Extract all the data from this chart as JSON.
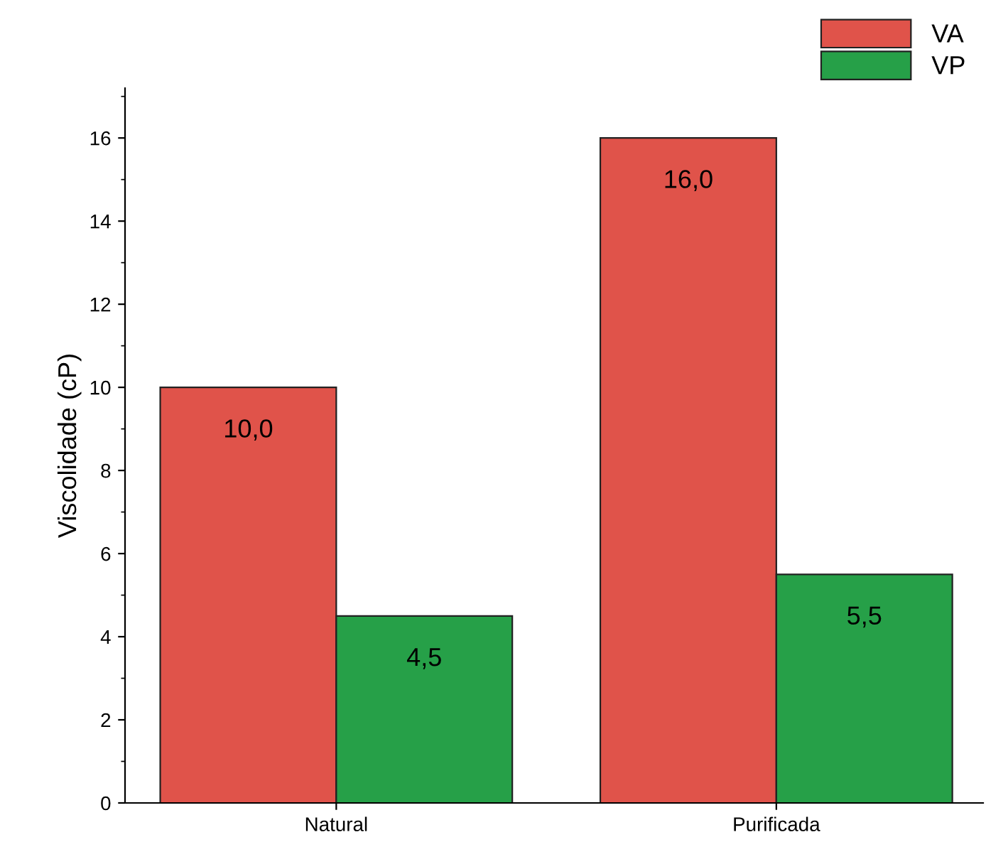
{
  "chart_data": {
    "type": "bar",
    "ylabel": "Viscolidade (cP)",
    "categories": [
      "Natural",
      "Purificada"
    ],
    "series": [
      {
        "name": "VA",
        "color": "#e0534a",
        "values": [
          10.0,
          16.0
        ],
        "value_labels": [
          "10,0",
          "16,0"
        ]
      },
      {
        "name": "VP",
        "color": "#26a048",
        "values": [
          4.5,
          5.5
        ],
        "value_labels": [
          "4,5",
          "5,5"
        ]
      }
    ],
    "ylim": [
      0,
      17.2
    ],
    "yticks": [
      0,
      2,
      4,
      6,
      8,
      10,
      12,
      14,
      16
    ],
    "grid": false,
    "legend": "top right"
  }
}
